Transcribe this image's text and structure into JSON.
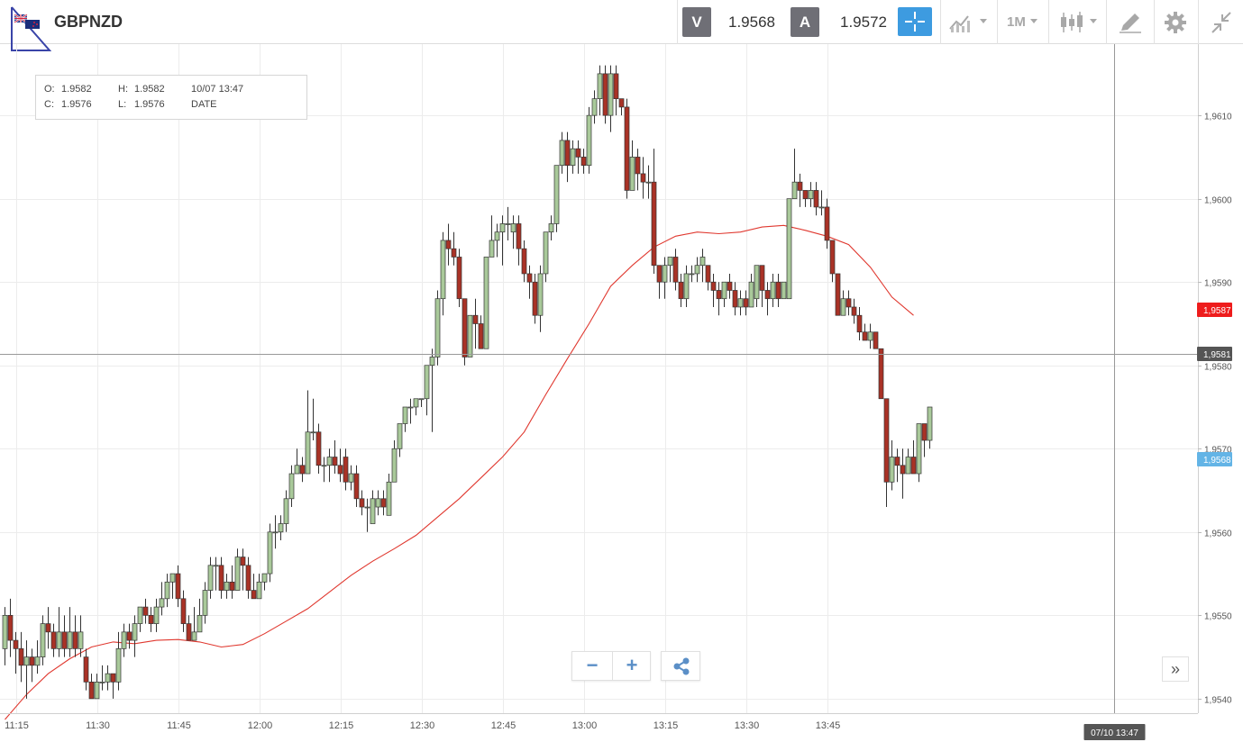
{
  "header": {
    "symbol": "GBPNZD",
    "sell_label": "V",
    "sell_price": "1.9568",
    "buy_label": "A",
    "buy_price": "1.9572",
    "timeframe": "1M"
  },
  "ohlc": {
    "o_label": "O:",
    "o": "1.9582",
    "h_label": "H:",
    "h": "1.9582",
    "c_label": "C:",
    "c": "1.9576",
    "l_label": "L:",
    "l": "1.9576",
    "date_value": "10/07 13:47",
    "date_label": "DATE"
  },
  "colors": {
    "bull": "#a9c99a",
    "bear": "#a93226",
    "ma": "#e0382f",
    "grid": "#ececec",
    "ma_tag": "#ee1c1c",
    "bid_tag": "#63b4e6",
    "cross_tag": "#555555",
    "accent": "#3d9be0"
  },
  "icons": {
    "flag": "uk-nz-flag-icon",
    "crosshair": "crosshair-icon",
    "line_chart": "line-chart-icon",
    "candles": "candlestick-icon",
    "draw": "pencil-icon",
    "settings": "gear-icon",
    "collapse": "collapse-icon",
    "zoom_out": "minus-icon",
    "zoom_in": "plus-icon",
    "share": "share-icon",
    "scroll": "double-chevron-right-icon"
  },
  "zoom": {
    "minus": "−",
    "plus": "+"
  },
  "scroll_label": "»",
  "chart_data": {
    "type": "candlestick",
    "title": "",
    "xlabel": "",
    "ylabel": "",
    "x_ticks": [
      "11:15",
      "11:30",
      "11:45",
      "12:00",
      "12:15",
      "12:30",
      "12:45",
      "13:00",
      "13:15",
      "13:30",
      "13:45"
    ],
    "y_ticks": [
      "1,9540",
      "1,9550",
      "1,9560",
      "1,9570",
      "1,9580",
      "1,9590",
      "1,9600",
      "1,9610"
    ],
    "ylim": [
      1.95375,
      1.96185
    ],
    "x_start_minute": 673,
    "grid": true,
    "candles": [
      [
        1.9546,
        1.955,
        1.9551,
        1.9544
      ],
      [
        1.955,
        1.9547,
        1.9552,
        1.9545
      ],
      [
        1.9547,
        1.9546,
        1.9548,
        1.9543
      ],
      [
        1.9546,
        1.9544,
        1.9548,
        1.9542
      ],
      [
        1.9544,
        1.9545,
        1.9547,
        1.954
      ],
      [
        1.9545,
        1.9544,
        1.9546,
        1.9542
      ],
      [
        1.9544,
        1.9545,
        1.9547,
        1.9543
      ],
      [
        1.9545,
        1.9549,
        1.955,
        1.9544
      ],
      [
        1.9549,
        1.9548,
        1.9551,
        1.9546
      ],
      [
        1.9548,
        1.9546,
        1.9549,
        1.9545
      ],
      [
        1.9546,
        1.9548,
        1.9551,
        1.9545
      ],
      [
        1.9548,
        1.9546,
        1.955,
        1.9545
      ],
      [
        1.9546,
        1.9548,
        1.9551,
        1.9545
      ],
      [
        1.9548,
        1.9546,
        1.955,
        1.9545
      ],
      [
        1.9546,
        1.9548,
        1.955,
        1.9545
      ],
      [
        1.9545,
        1.9542,
        1.9546,
        1.9541
      ],
      [
        1.9542,
        1.954,
        1.9543,
        1.954
      ],
      [
        1.954,
        1.9542,
        1.9543,
        1.954
      ],
      [
        1.9542,
        1.9542,
        1.9544,
        1.9541
      ],
      [
        1.9542,
        1.9543,
        1.9544,
        1.9541
      ],
      [
        1.9543,
        1.9542,
        1.9543,
        1.954
      ],
      [
        1.9542,
        1.9546,
        1.9548,
        1.9541
      ],
      [
        1.9546,
        1.9548,
        1.9549,
        1.9545
      ],
      [
        1.9548,
        1.9547,
        1.9549,
        1.9546
      ],
      [
        1.9547,
        1.9549,
        1.955,
        1.9545
      ],
      [
        1.9549,
        1.9551,
        1.9551,
        1.9548
      ],
      [
        1.9551,
        1.955,
        1.9552,
        1.9549
      ],
      [
        1.955,
        1.9549,
        1.9551,
        1.9548
      ],
      [
        1.9549,
        1.9551,
        1.9552,
        1.9548
      ],
      [
        1.9551,
        1.9552,
        1.9554,
        1.955
      ],
      [
        1.9552,
        1.9554,
        1.9555,
        1.9551
      ],
      [
        1.9554,
        1.9555,
        1.9555,
        1.9552
      ],
      [
        1.9555,
        1.9552,
        1.9556,
        1.9551
      ],
      [
        1.9552,
        1.9549,
        1.9553,
        1.9548
      ],
      [
        1.9549,
        1.9547,
        1.955,
        1.9547
      ],
      [
        1.9547,
        1.9548,
        1.9551,
        1.9547
      ],
      [
        1.9548,
        1.955,
        1.9552,
        1.9548
      ],
      [
        1.955,
        1.9553,
        1.9554,
        1.9549
      ],
      [
        1.9553,
        1.9556,
        1.9557,
        1.9552
      ],
      [
        1.9556,
        1.9556,
        1.9557,
        1.9553
      ],
      [
        1.9556,
        1.9553,
        1.9557,
        1.9552
      ],
      [
        1.9553,
        1.9554,
        1.9555,
        1.9552
      ],
      [
        1.9554,
        1.9553,
        1.9556,
        1.9552
      ],
      [
        1.9553,
        1.9557,
        1.9558,
        1.9553
      ],
      [
        1.9557,
        1.9556,
        1.9558,
        1.9553
      ],
      [
        1.9556,
        1.9553,
        1.9557,
        1.9552
      ],
      [
        1.9553,
        1.9552,
        1.9555,
        1.9552
      ],
      [
        1.9552,
        1.9554,
        1.9555,
        1.9553
      ],
      [
        1.9554,
        1.9555,
        1.9555,
        1.9553
      ],
      [
        1.9555,
        1.956,
        1.9561,
        1.9554
      ],
      [
        1.956,
        1.956,
        1.9562,
        1.9558
      ],
      [
        1.956,
        1.9561,
        1.9562,
        1.9559
      ],
      [
        1.9561,
        1.9564,
        1.9565,
        1.956
      ],
      [
        1.9564,
        1.9567,
        1.9568,
        1.9563
      ],
      [
        1.9567,
        1.9568,
        1.957,
        1.9567
      ],
      [
        1.9568,
        1.9567,
        1.9569,
        1.9566
      ],
      [
        1.9567,
        1.9572,
        1.9577,
        1.9567
      ],
      [
        1.9572,
        1.9572,
        1.9576,
        1.9571
      ],
      [
        1.9572,
        1.9568,
        1.9573,
        1.9567
      ],
      [
        1.9568,
        1.9568,
        1.9569,
        1.9566
      ],
      [
        1.9568,
        1.9569,
        1.957,
        1.9566
      ],
      [
        1.9569,
        1.9568,
        1.9571,
        1.9567
      ],
      [
        1.9568,
        1.9567,
        1.957,
        1.9566
      ],
      [
        1.9569,
        1.9566,
        1.957,
        1.9565
      ],
      [
        1.9566,
        1.9567,
        1.9568,
        1.9565
      ],
      [
        1.9567,
        1.9564,
        1.9568,
        1.9563
      ],
      [
        1.9564,
        1.9563,
        1.9565,
        1.9562
      ],
      [
        1.9563,
        1.9563,
        1.9564,
        1.956
      ],
      [
        1.9561,
        1.9564,
        1.9565,
        1.9561
      ],
      [
        1.9563,
        1.9564,
        1.9565,
        1.9562
      ],
      [
        1.9564,
        1.9563,
        1.9565,
        1.9562
      ],
      [
        1.9562,
        1.9566,
        1.9567,
        1.9562
      ],
      [
        1.9566,
        1.957,
        1.9571,
        1.9566
      ],
      [
        1.957,
        1.9573,
        1.9573,
        1.9569
      ],
      [
        1.9573,
        1.9575,
        1.9575,
        1.9572
      ],
      [
        1.9575,
        1.9575,
        1.9576,
        1.9573
      ],
      [
        1.9575,
        1.9576,
        1.9576,
        1.9574
      ],
      [
        1.9576,
        1.9576,
        1.9576,
        1.9575
      ],
      [
        1.9576,
        1.958,
        1.958,
        1.9574
      ],
      [
        1.958,
        1.9581,
        1.9582,
        1.9572
      ],
      [
        1.9581,
        1.9588,
        1.9589,
        1.958
      ],
      [
        1.9588,
        1.9595,
        1.9596,
        1.9586
      ],
      [
        1.9595,
        1.9594,
        1.9597,
        1.9592
      ],
      [
        1.9594,
        1.9593,
        1.9596,
        1.9592
      ],
      [
        1.9593,
        1.9588,
        1.9594,
        1.9587
      ],
      [
        1.9588,
        1.9581,
        1.9588,
        1.958
      ],
      [
        1.9581,
        1.9586,
        1.9586,
        1.9581
      ],
      [
        1.9586,
        1.9585,
        1.9588,
        1.9582
      ],
      [
        1.9585,
        1.9582,
        1.9586,
        1.9582
      ],
      [
        1.9582,
        1.9593,
        1.9593,
        1.9582
      ],
      [
        1.9593,
        1.9595,
        1.9598,
        1.9593
      ],
      [
        1.9595,
        1.9596,
        1.9597,
        1.9593
      ],
      [
        1.9596,
        1.9597,
        1.9598,
        1.9592
      ],
      [
        1.9597,
        1.9597,
        1.9599,
        1.9595
      ],
      [
        1.9596,
        1.9597,
        1.9598,
        1.9594
      ],
      [
        1.9597,
        1.9594,
        1.9598,
        1.9592
      ],
      [
        1.9594,
        1.9591,
        1.9595,
        1.959
      ],
      [
        1.9591,
        1.959,
        1.9592,
        1.9588
      ],
      [
        1.959,
        1.9586,
        1.9591,
        1.9585
      ],
      [
        1.9586,
        1.9591,
        1.9592,
        1.9584
      ],
      [
        1.9591,
        1.9596,
        1.9596,
        1.959
      ],
      [
        1.9596,
        1.9597,
        1.9598,
        1.9595
      ],
      [
        1.9597,
        1.9604,
        1.9604,
        1.9596
      ],
      [
        1.9604,
        1.9607,
        1.9608,
        1.9603
      ],
      [
        1.9607,
        1.9604,
        1.9608,
        1.9602
      ],
      [
        1.9604,
        1.9606,
        1.9607,
        1.9603
      ],
      [
        1.9606,
        1.9605,
        1.9607,
        1.9603
      ],
      [
        1.9605,
        1.9604,
        1.9606,
        1.9603
      ],
      [
        1.9604,
        1.961,
        1.9611,
        1.9603
      ],
      [
        1.961,
        1.9612,
        1.9613,
        1.9609
      ],
      [
        1.9612,
        1.9615,
        1.9616,
        1.961
      ],
      [
        1.9615,
        1.961,
        1.9616,
        1.9609
      ],
      [
        1.961,
        1.9615,
        1.9616,
        1.9608
      ],
      [
        1.9615,
        1.9612,
        1.9616,
        1.961
      ],
      [
        1.9612,
        1.9611,
        1.9612,
        1.961
      ],
      [
        1.9611,
        1.9601,
        1.9612,
        1.96
      ],
      [
        1.9601,
        1.9605,
        1.9607,
        1.9601
      ],
      [
        1.9605,
        1.9603,
        1.9606,
        1.9601
      ],
      [
        1.9603,
        1.9602,
        1.9605,
        1.96
      ],
      [
        1.9602,
        1.9602,
        1.9604,
        1.96
      ],
      [
        1.9602,
        1.9592,
        1.9606,
        1.9591
      ],
      [
        1.9592,
        1.959,
        1.9592,
        1.9588
      ],
      [
        1.959,
        1.9592,
        1.9593,
        1.9588
      ],
      [
        1.9592,
        1.9593,
        1.9593,
        1.959
      ],
      [
        1.9593,
        1.959,
        1.9594,
        1.9589
      ],
      [
        1.959,
        1.9588,
        1.9591,
        1.9587
      ],
      [
        1.9588,
        1.9591,
        1.9592,
        1.9587
      ],
      [
        1.9591,
        1.9591,
        1.9592,
        1.959
      ],
      [
        1.9591,
        1.9592,
        1.9593,
        1.959
      ],
      [
        1.9592,
        1.9593,
        1.9594,
        1.959
      ],
      [
        1.9592,
        1.959,
        1.9592,
        1.9589
      ],
      [
        1.959,
        1.9589,
        1.9591,
        1.9587
      ],
      [
        1.9589,
        1.9588,
        1.959,
        1.9586
      ],
      [
        1.9588,
        1.959,
        1.959,
        1.9587
      ],
      [
        1.959,
        1.9589,
        1.9591,
        1.9588
      ],
      [
        1.9589,
        1.9587,
        1.959,
        1.9586
      ],
      [
        1.9587,
        1.9588,
        1.9589,
        1.9586
      ],
      [
        1.9588,
        1.9587,
        1.9589,
        1.9586
      ],
      [
        1.9587,
        1.959,
        1.9591,
        1.9587
      ],
      [
        1.9588,
        1.9592,
        1.9592,
        1.9587
      ],
      [
        1.9592,
        1.9589,
        1.9592,
        1.9587
      ],
      [
        1.9589,
        1.9588,
        1.959,
        1.9586
      ],
      [
        1.9588,
        1.959,
        1.9591,
        1.9587
      ],
      [
        1.959,
        1.9588,
        1.9591,
        1.9587
      ],
      [
        1.9588,
        1.959,
        1.959,
        1.9588
      ],
      [
        1.9588,
        1.96,
        1.96,
        1.9588
      ],
      [
        1.96,
        1.9602,
        1.9606,
        1.96
      ],
      [
        1.9602,
        1.9601,
        1.9603,
        1.9599
      ],
      [
        1.9601,
        1.96,
        1.9601,
        1.9599
      ],
      [
        1.96,
        1.9601,
        1.9602,
        1.9599
      ],
      [
        1.9601,
        1.9599,
        1.9602,
        1.9598
      ],
      [
        1.9599,
        1.9599,
        1.9601,
        1.9598
      ],
      [
        1.9599,
        1.9595,
        1.96,
        1.9594
      ],
      [
        1.9595,
        1.9591,
        1.9595,
        1.959
      ],
      [
        1.9591,
        1.9586,
        1.9591,
        1.9586
      ],
      [
        1.9586,
        1.9588,
        1.9589,
        1.9586
      ],
      [
        1.9588,
        1.9587,
        1.9589,
        1.9586
      ],
      [
        1.9587,
        1.9586,
        1.9588,
        1.9585
      ],
      [
        1.9586,
        1.9584,
        1.9587,
        1.9583
      ],
      [
        1.9584,
        1.9583,
        1.9585,
        1.9583
      ],
      [
        1.9583,
        1.9584,
        1.9585,
        1.9582
      ],
      [
        1.9584,
        1.9582,
        1.9584,
        1.9582
      ],
      [
        1.9582,
        1.9576,
        1.9582,
        1.9576
      ],
      [
        1.9576,
        1.9566,
        1.9576,
        1.9563
      ],
      [
        1.9566,
        1.9569,
        1.9571,
        1.9565
      ],
      [
        1.9569,
        1.9568,
        1.957,
        1.9566
      ],
      [
        1.9568,
        1.9567,
        1.957,
        1.9564
      ],
      [
        1.9567,
        1.9569,
        1.957,
        1.9567
      ],
      [
        1.9569,
        1.9567,
        1.9571,
        1.9567
      ],
      [
        1.9567,
        1.9573,
        1.9573,
        1.9566
      ],
      [
        1.9573,
        1.9571,
        1.9573,
        1.9569
      ],
      [
        1.9571,
        1.9575,
        1.9575,
        1.957
      ]
    ],
    "ma": [
      1.95375,
      1.95405,
      1.9543,
      1.95448,
      1.95462,
      1.95468,
      1.95466,
      1.9547,
      1.95471,
      1.95468,
      1.95462,
      1.95465,
      1.95478,
      1.95493,
      1.95508,
      1.95528,
      1.95548,
      1.95565,
      1.9558,
      1.95596,
      1.95618,
      1.9564,
      1.95665,
      1.9569,
      1.9572,
      1.95765,
      1.95808,
      1.9585,
      1.95895,
      1.9592,
      1.95942,
      1.95955,
      1.9596,
      1.95958,
      1.9596,
      1.95966,
      1.95968,
      1.95962,
      1.95955,
      1.95945,
      1.95918,
      1.95882,
      1.9586
    ],
    "ma_step": 4,
    "crosshair_price": 1.95814,
    "crosshair_index": 205,
    "price_tags": {
      "ma": "1,9587",
      "crosshair": "1,9581",
      "bid": "1,9568",
      "ma_value": 1.95867,
      "bid_value": 1.95687
    },
    "crosshair_time": "07/10 13:47",
    "cutoff_tick": "13:45"
  }
}
